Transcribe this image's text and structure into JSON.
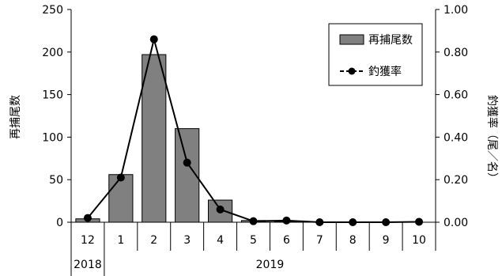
{
  "chart_data": {
    "type": "bar+line",
    "categories": [
      "12",
      "1",
      "2",
      "3",
      "4",
      "5",
      "6",
      "7",
      "8",
      "9",
      "10"
    ],
    "year_labels": [
      {
        "label": "2018",
        "from": 0,
        "to": 0
      },
      {
        "label": "2019",
        "from": 1,
        "to": 10
      }
    ],
    "series": [
      {
        "name": "再捕尾数",
        "type": "bar",
        "axis": "left",
        "color": "#808080",
        "values": [
          4,
          56,
          197,
          110,
          26,
          2,
          1,
          0,
          0,
          0,
          0
        ]
      },
      {
        "name": "釣獲率",
        "type": "line",
        "axis": "right",
        "color": "#000000",
        "values": [
          0.02,
          0.21,
          0.86,
          0.28,
          0.06,
          0.005,
          0.008,
          0.0,
          0.0,
          0.0,
          0.002
        ]
      }
    ],
    "ylabel_left": "再捕尾数",
    "ylabel_right": "釣獲率（尾／名）",
    "ylim_left": [
      0,
      250
    ],
    "ylim_right": [
      0,
      1.0
    ],
    "yticks_left": [
      "0",
      "50",
      "100",
      "150",
      "200",
      "250"
    ],
    "yticks_right": [
      "0.00",
      "0.20",
      "0.40",
      "0.60",
      "0.80",
      "1.00"
    ],
    "legend_position": "top-right",
    "grid": false
  }
}
